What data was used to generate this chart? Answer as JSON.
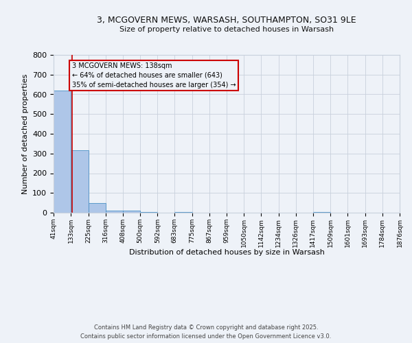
{
  "title1": "3, MCGOVERN MEWS, WARSASH, SOUTHAMPTON, SO31 9LE",
  "title2": "Size of property relative to detached houses in Warsash",
  "xlabel": "Distribution of detached houses by size in Warsash",
  "ylabel": "Number of detached properties",
  "bin_labels": [
    "41sqm",
    "133sqm",
    "225sqm",
    "316sqm",
    "408sqm",
    "500sqm",
    "592sqm",
    "683sqm",
    "775sqm",
    "867sqm",
    "959sqm",
    "1050sqm",
    "1142sqm",
    "1234sqm",
    "1326sqm",
    "1417sqm",
    "1509sqm",
    "1601sqm",
    "1693sqm",
    "1784sqm",
    "1876sqm"
  ],
  "bin_edges": [
    41,
    133,
    225,
    316,
    408,
    500,
    592,
    683,
    775,
    867,
    959,
    1050,
    1142,
    1234,
    1326,
    1417,
    1509,
    1601,
    1693,
    1784,
    1876
  ],
  "bar_heights": [
    620,
    315,
    50,
    12,
    12,
    5,
    0,
    5,
    0,
    0,
    0,
    0,
    0,
    0,
    0,
    5,
    0,
    0,
    0,
    0
  ],
  "bar_color": "#aec6e8",
  "bar_edge_color": "#4a90c4",
  "property_line_x": 138,
  "property_sqm": 138,
  "pct_smaller": 64,
  "count_smaller": 643,
  "pct_larger_semi": 35,
  "count_larger_semi": 354,
  "annotation_line1": "3 MCGOVERN MEWS: 138sqm",
  "annotation_line2": "← 64% of detached houses are smaller (643)",
  "annotation_line3": "35% of semi-detached houses are larger (354) →",
  "annotation_box_color": "#cc0000",
  "ylim": [
    0,
    800
  ],
  "yticks": [
    0,
    100,
    200,
    300,
    400,
    500,
    600,
    700,
    800
  ],
  "grid_color": "#c8d0dc",
  "background_color": "#eef2f8",
  "footer1": "Contains HM Land Registry data © Crown copyright and database right 2025.",
  "footer2": "Contains public sector information licensed under the Open Government Licence v3.0."
}
